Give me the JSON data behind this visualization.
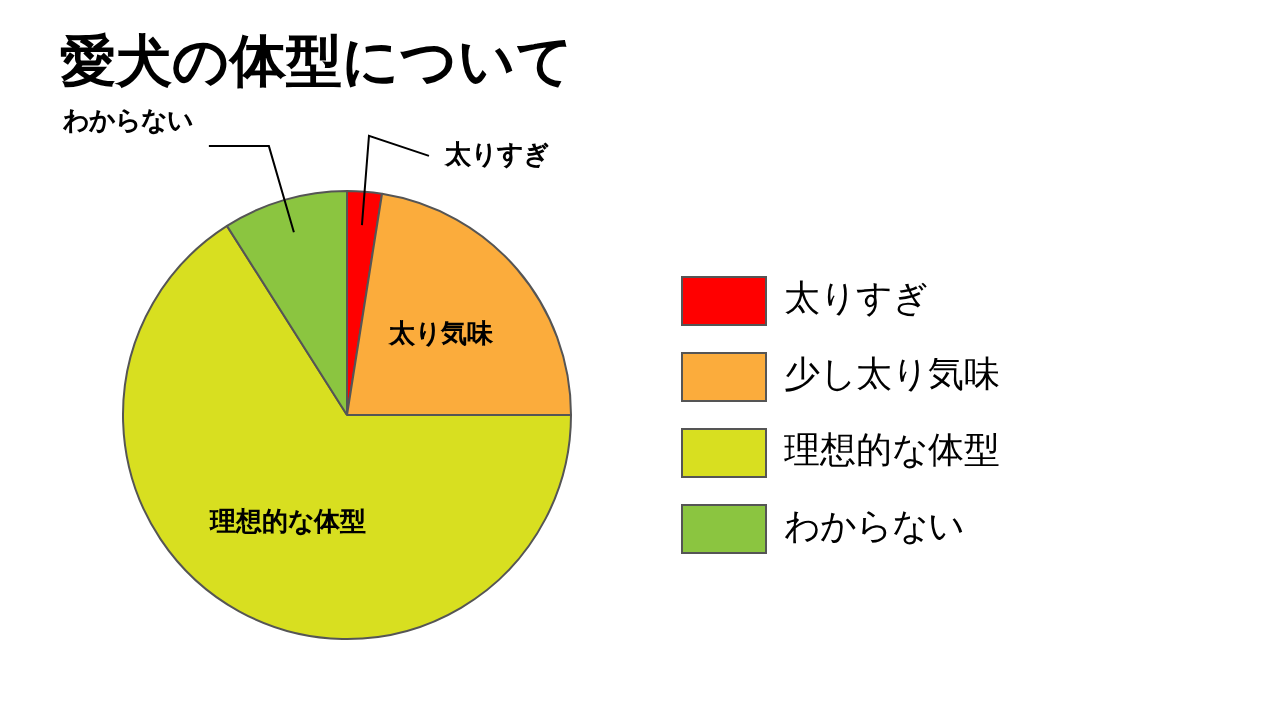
{
  "chart_data": {
    "type": "pie",
    "title": "愛犬の体型について",
    "categories": [
      "太りすぎ",
      "少し太り気味",
      "理想的な体型",
      "わからない"
    ],
    "values": [
      2.5,
      22.5,
      66,
      9
    ],
    "colors": [
      "#ff0000",
      "#fbac3c",
      "#d8df20",
      "#8bc540"
    ],
    "annotations": [
      "太りすぎ",
      "太り気味",
      "理想的な体型",
      "わからない"
    ],
    "legend": "right"
  }
}
